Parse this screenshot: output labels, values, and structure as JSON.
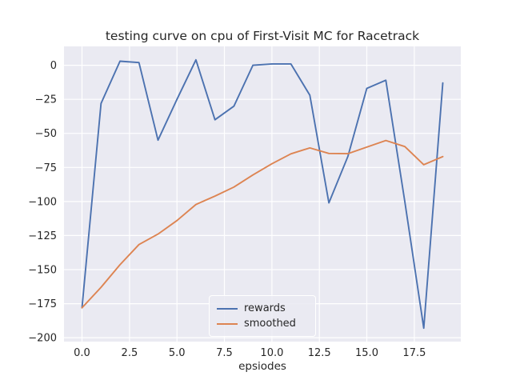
{
  "figure": {
    "title": "testing curve on cpu of First-Visit MC for Racetrack",
    "xlabel": "epsiodes"
  },
  "legend": {
    "items": [
      {
        "label": "rewards",
        "color": "#4C72B0"
      },
      {
        "label": "smoothed",
        "color": "#DD8452"
      }
    ]
  },
  "chart_data": {
    "type": "line",
    "title": "testing curve on cpu of First-Visit MC for Racetrack",
    "xlabel": "epsiodes",
    "ylabel": "",
    "x": [
      0,
      1,
      2,
      3,
      4,
      5,
      6,
      7,
      8,
      9,
      10,
      11,
      12,
      13,
      14,
      15,
      16,
      17,
      18,
      19
    ],
    "series": [
      {
        "name": "rewards",
        "color": "#4C72B0",
        "values": [
          -178,
          -28,
          3,
          2,
          -55,
          -25,
          4,
          -40,
          -30,
          0,
          1,
          1,
          -22,
          -101,
          -67,
          -17,
          -11,
          -100,
          -193,
          -13
        ]
      },
      {
        "name": "smoothed",
        "color": "#DD8452",
        "values": [
          -178,
          -163,
          -146.4,
          -131.6,
          -123.9,
          -114,
          -102.2,
          -96,
          -89.4,
          -80.5,
          -72.3,
          -65,
          -60.7,
          -64.7,
          -64.9,
          -60.1,
          -55.2,
          -59.7,
          -73,
          -67
        ]
      }
    ],
    "xlim": [
      -0.95,
      19.95
    ],
    "ylim": [
      -202.85,
      13.85
    ],
    "xticks": [
      0,
      2.5,
      5,
      7.5,
      10,
      12.5,
      15,
      17.5
    ],
    "xtick_labels": [
      "0.0",
      "2.5",
      "5.0",
      "7.5",
      "10.0",
      "12.5",
      "15.0",
      "17.5"
    ],
    "yticks": [
      0,
      -25,
      -50,
      -75,
      -100,
      -125,
      -150,
      -175,
      -200
    ],
    "ytick_labels": [
      "0",
      "−25",
      "−50",
      "−75",
      "−100",
      "−125",
      "−150",
      "−175",
      "−200"
    ],
    "grid": true,
    "legend_position": "lower center",
    "plot_bg": "#eaeaf2",
    "grid_color": "#ffffff",
    "tick_color": "#262626"
  }
}
